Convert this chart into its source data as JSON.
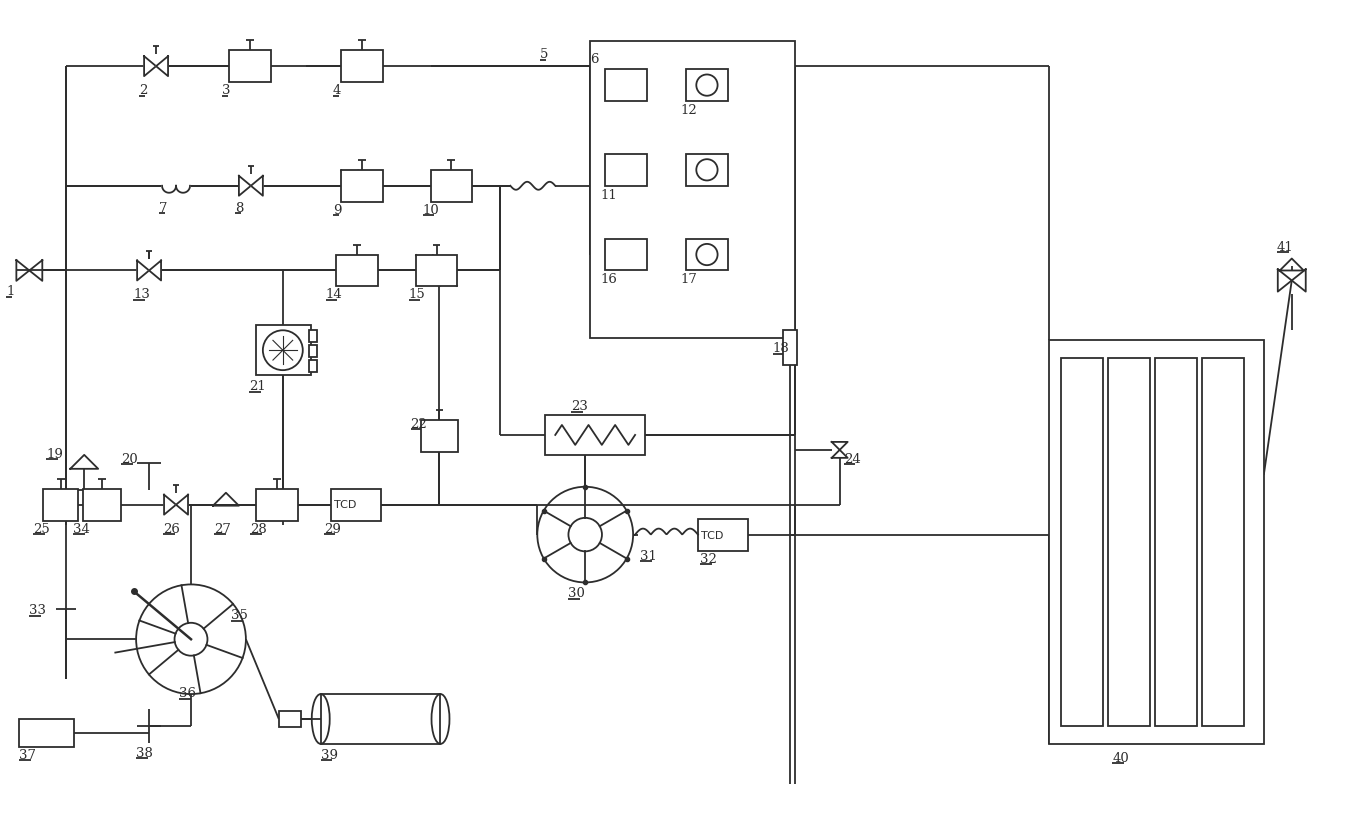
{
  "bg": "#ffffff",
  "lc": "#2d2d2d",
  "lw": 1.3,
  "fs": 9.5,
  "fw": 13.65,
  "fh": 8.27
}
